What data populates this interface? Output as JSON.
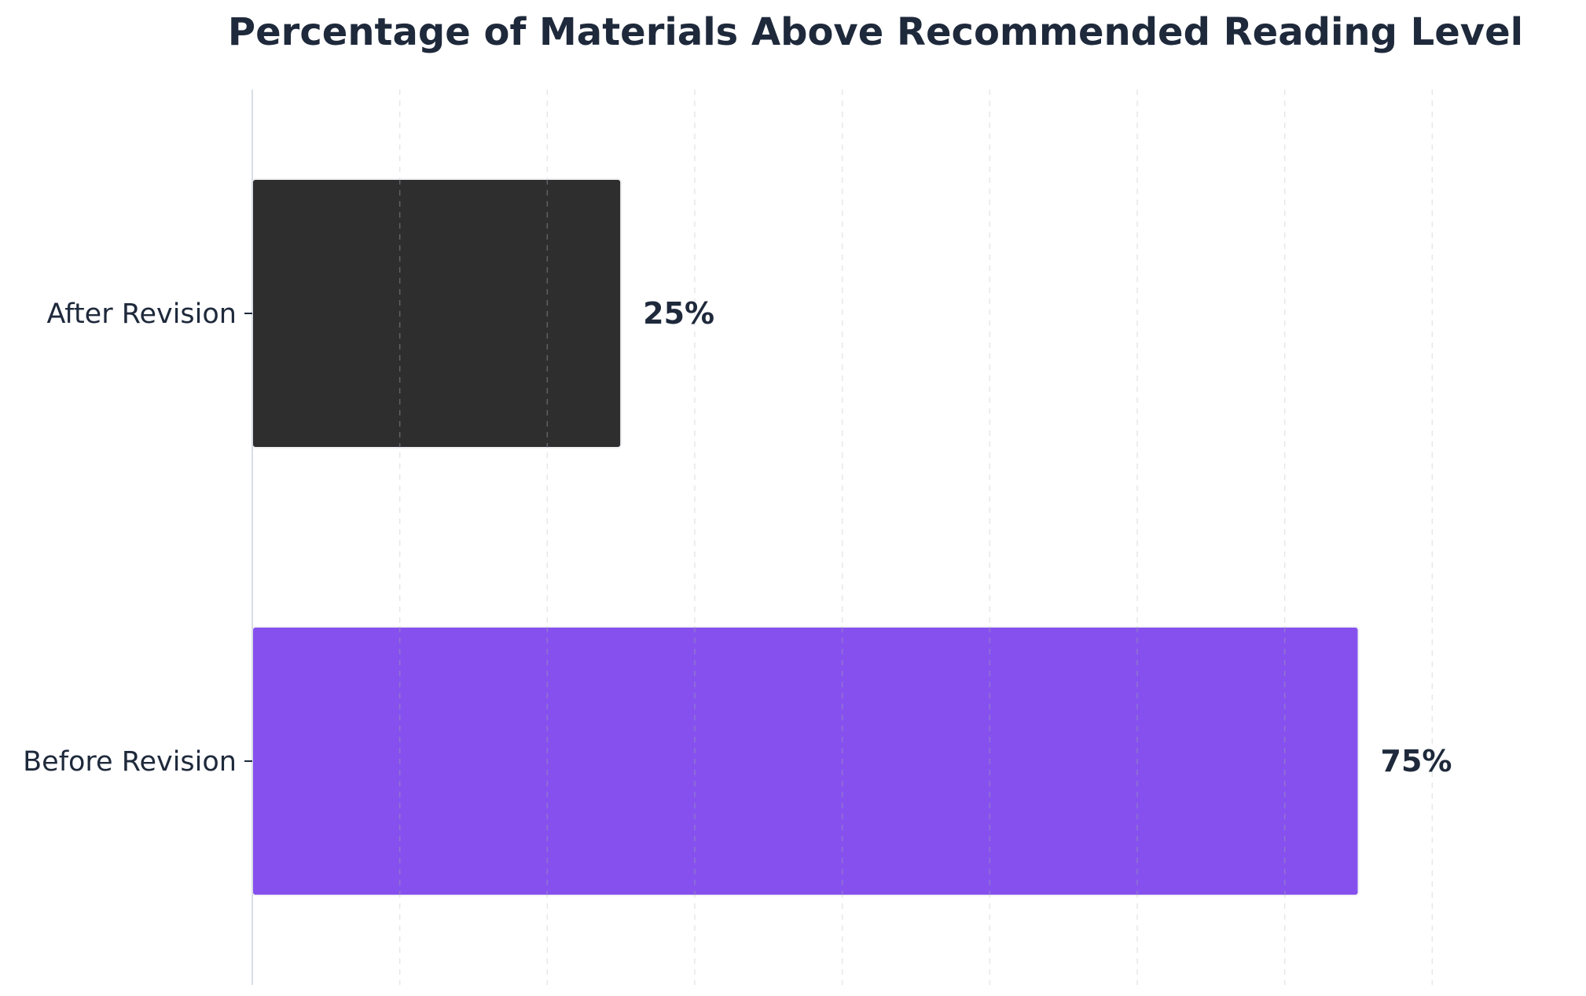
{
  "chart_data": {
    "type": "bar",
    "orientation": "horizontal",
    "title": "Percentage of Materials Above Recommended Reading Level",
    "xlabel": "",
    "ylabel": "",
    "categories": [
      "After Revision",
      "Before Revision"
    ],
    "values": [
      25,
      75
    ],
    "value_labels": [
      "25%",
      "75%"
    ],
    "colors": [
      "#2e2e2e",
      "#8650ef"
    ],
    "xlim": [
      0,
      90
    ],
    "grid": "vertical dashed",
    "legend": "none"
  }
}
